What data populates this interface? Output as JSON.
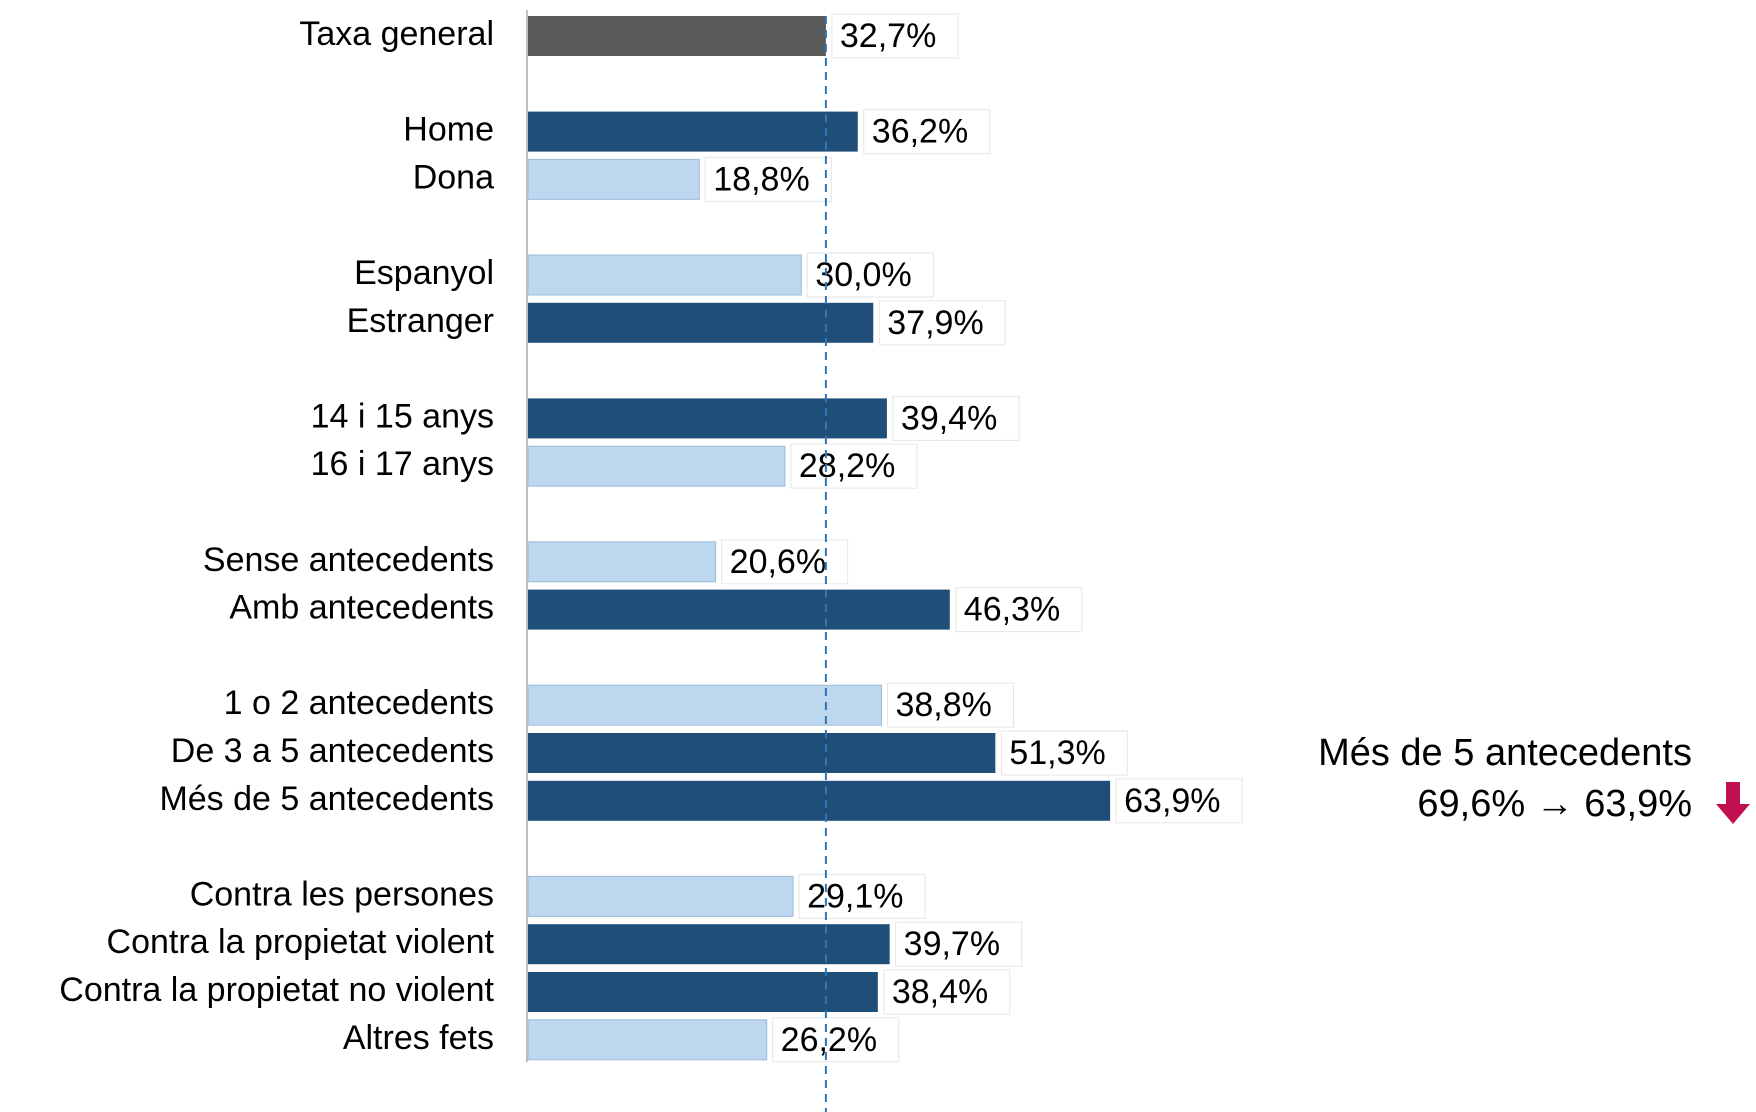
{
  "chart_data": {
    "type": "hbar",
    "categories": [
      "Taxa general",
      "Home",
      "Dona",
      "Espanyol",
      "Estranger",
      "14 i 15 anys",
      "16 i 17 anys",
      "Sense antecedents",
      "Amb antecedents",
      "1 o 2 antecedents",
      "De 3 a 5 antecedents",
      "Més de 5 antecedents",
      "Contra les persones",
      "Contra la propietat violent",
      "Contra la propietat no violent",
      "Altres fets"
    ],
    "values": [
      32.7,
      36.2,
      18.8,
      30.0,
      37.9,
      39.4,
      28.2,
      20.6,
      46.3,
      38.8,
      51.3,
      63.9,
      29.1,
      39.7,
      38.4,
      26.2
    ],
    "value_labels": [
      "32,7%",
      "36,2%",
      "18,8%",
      "30,0%",
      "37,9%",
      "39,4%",
      "28,2%",
      "20,6%",
      "46,3%",
      "38,8%",
      "51,3%",
      "63,9%",
      "29,1%",
      "39,7%",
      "38,4%",
      "26,2%"
    ],
    "colors": [
      "#595959",
      "#1f4e79",
      "#bdd7ee",
      "#bdd7ee",
      "#1f4e79",
      "#1f4e79",
      "#bdd7ee",
      "#bdd7ee",
      "#1f4e79",
      "#bdd7ee",
      "#1f4e79",
      "#1f4e79",
      "#bdd7ee",
      "#1f4e79",
      "#1f4e79",
      "#bdd7ee"
    ],
    "annotations": [
      "Més de 5 antecedents",
      "69,6% → 63,9%"
    ],
    "annotation_color": "#c0104f"
  }
}
